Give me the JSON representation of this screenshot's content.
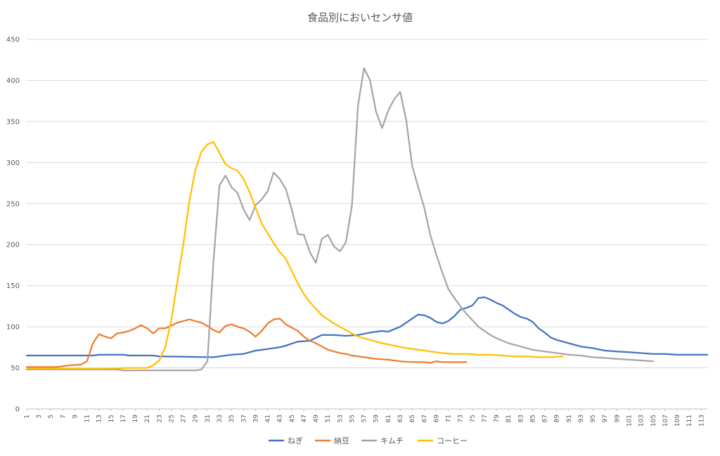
{
  "chart_data": {
    "type": "line",
    "title": "食品別においセンサ値",
    "xlabel": "",
    "ylabel": "",
    "ylim": [
      0,
      450
    ],
    "yticks": [
      0,
      50,
      100,
      150,
      200,
      250,
      300,
      350,
      400,
      450
    ],
    "xlim": [
      1,
      114
    ],
    "xtick_labels": [
      "1",
      "3",
      "5",
      "7",
      "9",
      "11",
      "13",
      "15",
      "17",
      "19",
      "21",
      "23",
      "25",
      "27",
      "29",
      "31",
      "33",
      "35",
      "37",
      "39",
      "41",
      "43",
      "45",
      "47",
      "49",
      "51",
      "53",
      "55",
      "57",
      "59",
      "61",
      "63",
      "65",
      "67",
      "69",
      "71",
      "73",
      "75",
      "77",
      "79",
      "81",
      "83",
      "85",
      "87",
      "89",
      "91",
      "93",
      "95",
      "97",
      "99",
      "101",
      "103",
      "105",
      "107",
      "109",
      "111",
      "113"
    ],
    "grid": true,
    "legend_position": "bottom",
    "series": [
      {
        "name": "ねぎ",
        "color": "#4472C4",
        "points": [
          [
            1,
            65
          ],
          [
            12,
            65
          ],
          [
            13,
            66
          ],
          [
            17,
            66
          ],
          [
            18,
            65
          ],
          [
            22,
            65
          ],
          [
            23,
            64
          ],
          [
            32,
            63
          ],
          [
            33,
            64
          ],
          [
            35,
            66
          ],
          [
            37,
            67
          ],
          [
            39,
            71
          ],
          [
            41,
            73
          ],
          [
            43,
            75
          ],
          [
            44,
            77
          ],
          [
            46,
            82
          ],
          [
            48,
            83
          ],
          [
            50,
            90
          ],
          [
            52,
            90
          ],
          [
            54,
            89
          ],
          [
            56,
            90
          ],
          [
            58,
            93
          ],
          [
            60,
            95
          ],
          [
            61,
            94
          ],
          [
            63,
            100
          ],
          [
            65,
            110
          ],
          [
            66,
            115
          ],
          [
            67,
            114
          ],
          [
            68,
            111
          ],
          [
            69,
            106
          ],
          [
            70,
            104
          ],
          [
            71,
            107
          ],
          [
            72,
            113
          ],
          [
            73,
            121
          ],
          [
            74,
            123
          ],
          [
            75,
            126
          ],
          [
            76,
            135
          ],
          [
            77,
            136
          ],
          [
            78,
            133
          ],
          [
            79,
            129
          ],
          [
            80,
            126
          ],
          [
            81,
            121
          ],
          [
            82,
            116
          ],
          [
            83,
            112
          ],
          [
            84,
            110
          ],
          [
            85,
            106
          ],
          [
            86,
            98
          ],
          [
            87,
            93
          ],
          [
            88,
            87
          ],
          [
            89,
            84
          ],
          [
            91,
            80
          ],
          [
            93,
            76
          ],
          [
            95,
            74
          ],
          [
            97,
            71
          ],
          [
            99,
            70
          ],
          [
            101,
            69
          ],
          [
            103,
            68
          ],
          [
            105,
            67
          ],
          [
            107,
            67
          ],
          [
            109,
            66
          ],
          [
            111,
            66
          ],
          [
            114,
            66
          ]
        ]
      },
      {
        "name": "納豆",
        "color": "#ED7D31",
        "points": [
          [
            1,
            51
          ],
          [
            6,
            51
          ],
          [
            8,
            53
          ],
          [
            10,
            54
          ],
          [
            11,
            58
          ],
          [
            12,
            80
          ],
          [
            13,
            91
          ],
          [
            14,
            88
          ],
          [
            15,
            86
          ],
          [
            16,
            92
          ],
          [
            17,
            93
          ],
          [
            18,
            95
          ],
          [
            19,
            98
          ],
          [
            20,
            102
          ],
          [
            21,
            98
          ],
          [
            22,
            92
          ],
          [
            23,
            98
          ],
          [
            24,
            98
          ],
          [
            26,
            105
          ],
          [
            28,
            109
          ],
          [
            30,
            105
          ],
          [
            31,
            101
          ],
          [
            32,
            96
          ],
          [
            33,
            93
          ],
          [
            34,
            101
          ],
          [
            35,
            103
          ],
          [
            36,
            100
          ],
          [
            37,
            98
          ],
          [
            38,
            94
          ],
          [
            39,
            88
          ],
          [
            40,
            95
          ],
          [
            41,
            104
          ],
          [
            42,
            109
          ],
          [
            43,
            110
          ],
          [
            44,
            103
          ],
          [
            45,
            99
          ],
          [
            46,
            95
          ],
          [
            47,
            88
          ],
          [
            48,
            83
          ],
          [
            49,
            80
          ],
          [
            50,
            76
          ],
          [
            51,
            72
          ],
          [
            52,
            70
          ],
          [
            53,
            68
          ],
          [
            54,
            67
          ],
          [
            55,
            65
          ],
          [
            57,
            63
          ],
          [
            59,
            61
          ],
          [
            61,
            60
          ],
          [
            63,
            58
          ],
          [
            65,
            57
          ],
          [
            67,
            57
          ],
          [
            68,
            56
          ],
          [
            69,
            58
          ],
          [
            70,
            57
          ],
          [
            74,
            57
          ]
        ]
      },
      {
        "name": "キムチ",
        "color": "#A5A5A5",
        "points": [
          [
            1,
            48
          ],
          [
            16,
            48
          ],
          [
            17,
            47
          ],
          [
            29,
            47
          ],
          [
            30,
            48
          ],
          [
            31,
            58
          ],
          [
            32,
            180
          ],
          [
            33,
            272
          ],
          [
            34,
            284
          ],
          [
            35,
            270
          ],
          [
            36,
            263
          ],
          [
            37,
            243
          ],
          [
            38,
            230
          ],
          [
            39,
            248
          ],
          [
            40,
            255
          ],
          [
            41,
            265
          ],
          [
            42,
            288
          ],
          [
            43,
            280
          ],
          [
            44,
            268
          ],
          [
            45,
            243
          ],
          [
            46,
            213
          ],
          [
            47,
            212
          ],
          [
            48,
            191
          ],
          [
            49,
            178
          ],
          [
            50,
            207
          ],
          [
            51,
            212
          ],
          [
            52,
            198
          ],
          [
            53,
            192
          ],
          [
            54,
            203
          ],
          [
            55,
            248
          ],
          [
            56,
            370
          ],
          [
            57,
            415
          ],
          [
            58,
            400
          ],
          [
            59,
            362
          ],
          [
            60,
            342
          ],
          [
            61,
            363
          ],
          [
            62,
            377
          ],
          [
            63,
            386
          ],
          [
            64,
            352
          ],
          [
            65,
            296
          ],
          [
            66,
            270
          ],
          [
            67,
            245
          ],
          [
            68,
            212
          ],
          [
            69,
            188
          ],
          [
            70,
            166
          ],
          [
            71,
            146
          ],
          [
            72,
            135
          ],
          [
            73,
            125
          ],
          [
            74,
            116
          ],
          [
            75,
            108
          ],
          [
            76,
            100
          ],
          [
            77,
            95
          ],
          [
            78,
            90
          ],
          [
            79,
            86
          ],
          [
            81,
            80
          ],
          [
            83,
            76
          ],
          [
            85,
            72
          ],
          [
            87,
            70
          ],
          [
            89,
            68
          ],
          [
            91,
            66
          ],
          [
            93,
            65
          ],
          [
            95,
            63
          ],
          [
            97,
            62
          ],
          [
            99,
            61
          ],
          [
            101,
            60
          ],
          [
            103,
            59
          ],
          [
            105,
            58
          ]
        ]
      },
      {
        "name": "コーヒー",
        "color": "#FFC000",
        "points": [
          [
            1,
            49
          ],
          [
            14,
            49
          ],
          [
            18,
            50
          ],
          [
            21,
            50
          ],
          [
            22,
            53
          ],
          [
            23,
            59
          ],
          [
            24,
            75
          ],
          [
            25,
            108
          ],
          [
            26,
            155
          ],
          [
            27,
            200
          ],
          [
            28,
            253
          ],
          [
            29,
            291
          ],
          [
            30,
            313
          ],
          [
            31,
            322
          ],
          [
            32,
            325
          ],
          [
            33,
            312
          ],
          [
            34,
            298
          ],
          [
            35,
            293
          ],
          [
            36,
            290
          ],
          [
            37,
            280
          ],
          [
            38,
            264
          ],
          [
            39,
            245
          ],
          [
            40,
            226
          ],
          [
            41,
            214
          ],
          [
            42,
            202
          ],
          [
            43,
            191
          ],
          [
            44,
            183
          ],
          [
            45,
            168
          ],
          [
            46,
            153
          ],
          [
            47,
            140
          ],
          [
            48,
            130
          ],
          [
            49,
            122
          ],
          [
            50,
            114
          ],
          [
            52,
            104
          ],
          [
            54,
            96
          ],
          [
            56,
            88
          ],
          [
            58,
            84
          ],
          [
            60,
            80
          ],
          [
            62,
            77
          ],
          [
            64,
            74
          ],
          [
            66,
            72
          ],
          [
            68,
            70
          ],
          [
            70,
            68
          ],
          [
            72,
            67
          ],
          [
            74,
            67
          ],
          [
            76,
            66
          ],
          [
            78,
            66
          ],
          [
            80,
            65
          ],
          [
            82,
            64
          ],
          [
            84,
            64
          ],
          [
            86,
            63
          ],
          [
            88,
            63
          ],
          [
            90,
            64
          ]
        ]
      }
    ]
  }
}
